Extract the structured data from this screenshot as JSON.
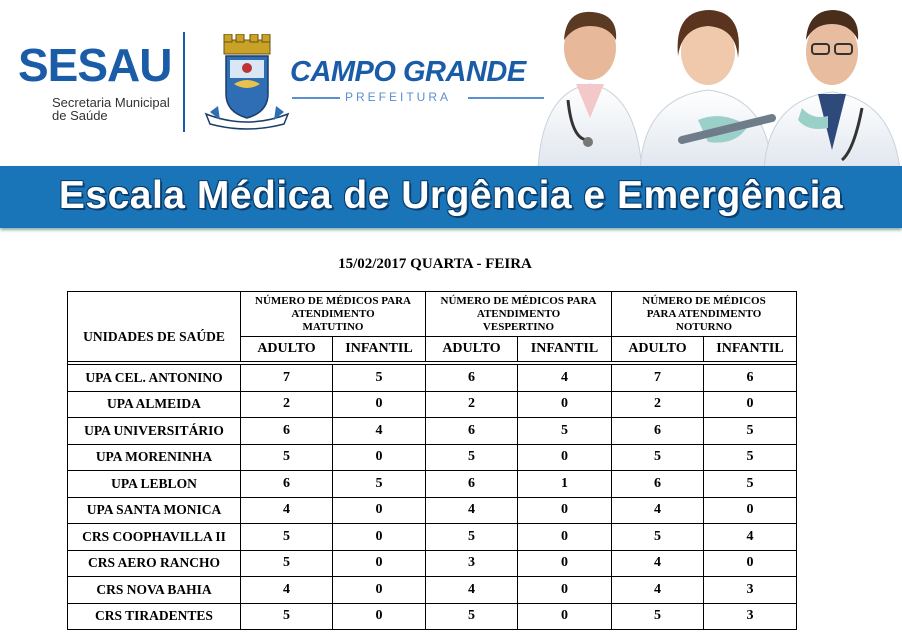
{
  "header": {
    "brand": "SESAU",
    "brand_sub_line1": "Secretaria Municipal",
    "brand_sub_line2": "de Saúde",
    "city": "CAMPO GRANDE",
    "city_sub": "PREFEITURA",
    "banner_title": "Escala Médica de Urgência e Emergência"
  },
  "schedule": {
    "date": "15/02/2017 QUARTA - FEIRA",
    "unit_header": "UNIDADES DE SAÚDE",
    "groups": [
      {
        "line1": "NÚMERO DE MÉDICOS PARA",
        "line2": "ATENDIMENTO",
        "line3": "MATUTINO"
      },
      {
        "line1": "NÚMERO DE MÉDICOS PARA",
        "line2": "ATENDIMENTO",
        "line3": "VESPERTINO"
      },
      {
        "line1": "NÚMERO DE MÉDICOS",
        "line2": "PARA ATENDIMENTO",
        "line3": "NOTURNO"
      }
    ],
    "sub_headers": [
      "ADULTO",
      "INFANTIL",
      "ADULTO",
      "INFANTIL",
      "ADULTO",
      "INFANTIL"
    ],
    "rows": [
      {
        "unit": "UPA CEL. ANTONINO",
        "values": [
          "7",
          "5",
          "6",
          "4",
          "7",
          "6"
        ]
      },
      {
        "unit": "UPA ALMEIDA",
        "values": [
          "2",
          "0",
          "2",
          "0",
          "2",
          "0"
        ]
      },
      {
        "unit": "UPA UNIVERSITÁRIO",
        "values": [
          "6",
          "4",
          "6",
          "5",
          "6",
          "5"
        ]
      },
      {
        "unit": "UPA MORENINHA",
        "values": [
          "5",
          "0",
          "5",
          "0",
          "5",
          "5"
        ]
      },
      {
        "unit": "UPA LEBLON",
        "values": [
          "6",
          "5",
          "6",
          "1",
          "6",
          "5"
        ]
      },
      {
        "unit": "UPA SANTA MONICA",
        "values": [
          "4",
          "0",
          "4",
          "0",
          "4",
          "0"
        ]
      },
      {
        "unit": "CRS COOPHAVILLA II",
        "values": [
          "5",
          "0",
          "5",
          "0",
          "5",
          "4"
        ]
      },
      {
        "unit": "CRS AERO RANCHO",
        "values": [
          "5",
          "0",
          "3",
          "0",
          "4",
          "0"
        ]
      },
      {
        "unit": "CRS NOVA BAHIA",
        "values": [
          "4",
          "0",
          "4",
          "0",
          "4",
          "3"
        ]
      },
      {
        "unit": "CRS TIRADENTES",
        "values": [
          "5",
          "0",
          "5",
          "0",
          "5",
          "3"
        ]
      }
    ]
  },
  "colors": {
    "brand_blue": "#1a5ca8",
    "banner_blue": "#1a75b8"
  }
}
